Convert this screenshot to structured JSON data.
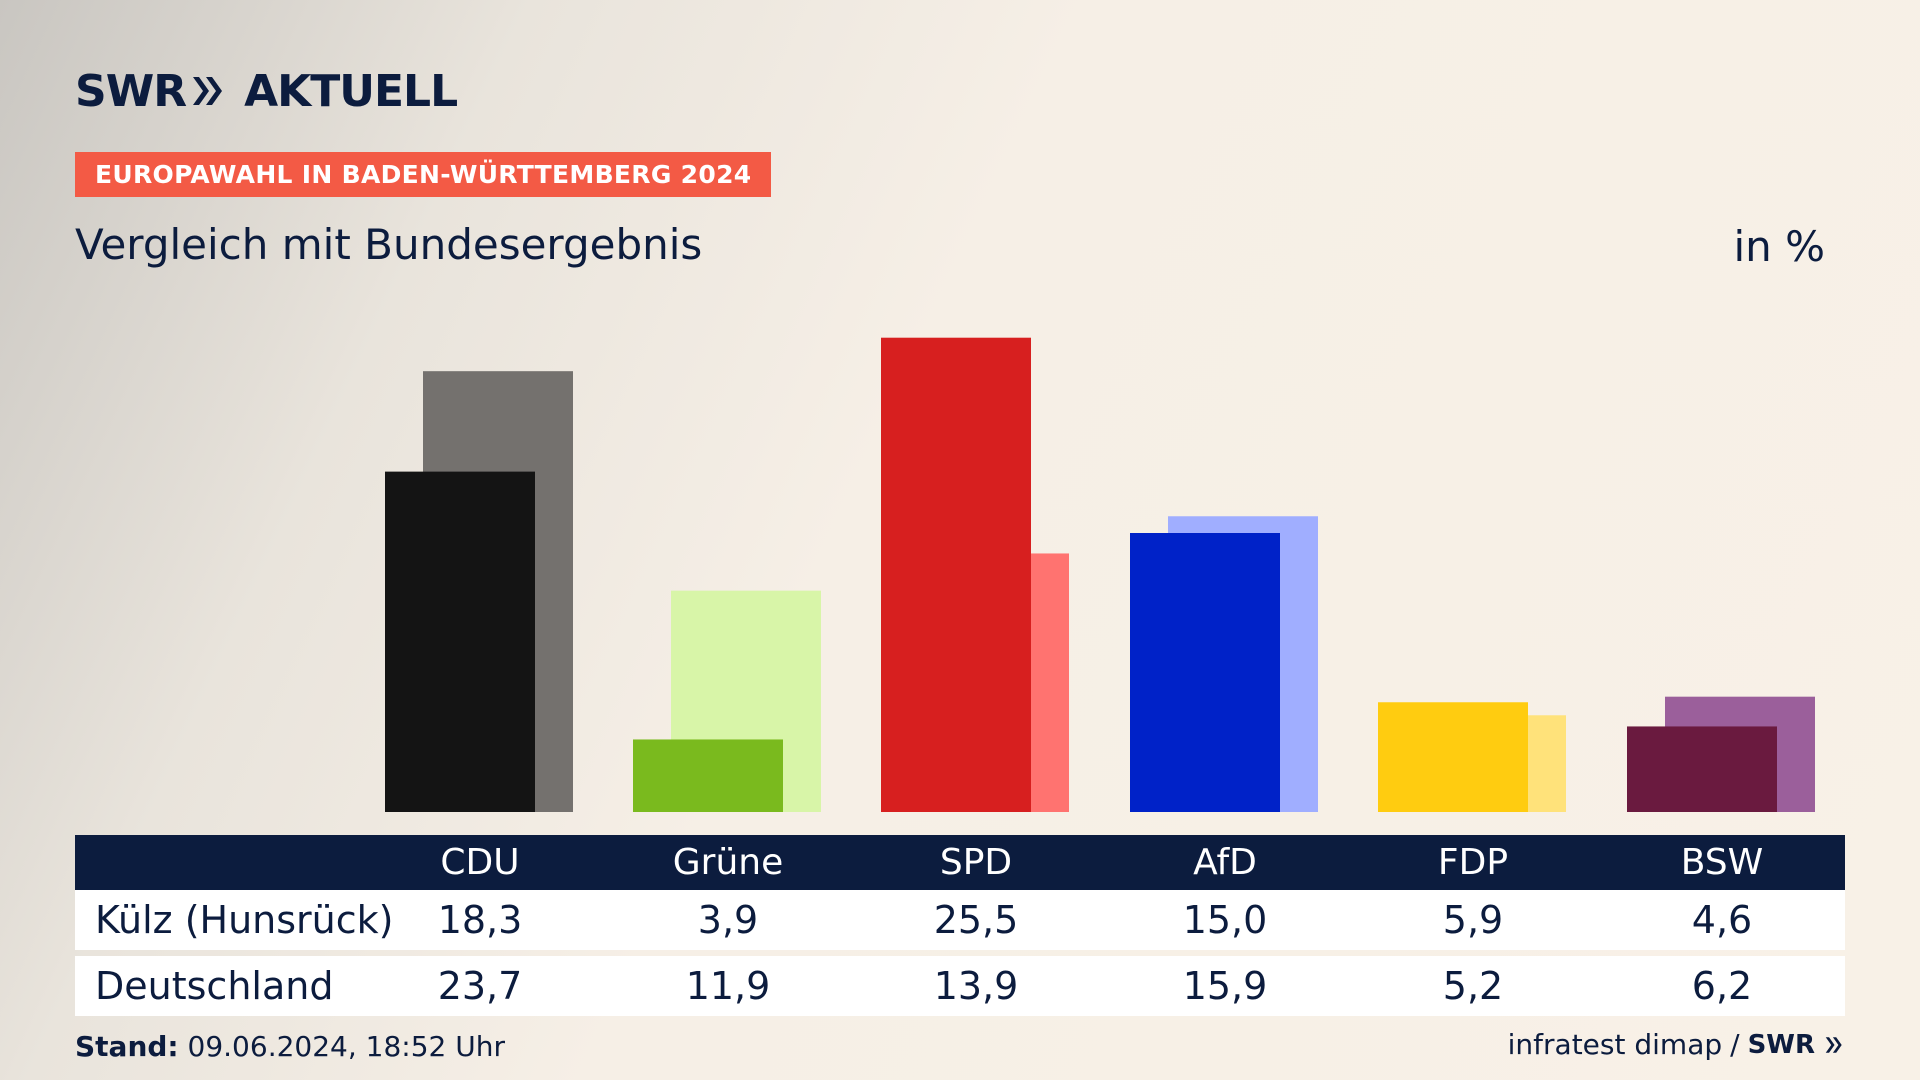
{
  "brand": {
    "swr": "SWR",
    "aktuell": "AKTUELL",
    "swr_small": "SWR"
  },
  "header": {
    "tag": "EUROPAWAHL IN BADEN-WÜRTTEMBERG 2024",
    "subtitle": "Vergleich mit Bundesergebnis",
    "unit": "in %"
  },
  "colors": {
    "navy": "#0c1c3e",
    "tag": "#f35a45",
    "CDU": [
      "#141414",
      "#74716e"
    ],
    "Grüne": [
      "#7aba1e",
      "#d8f5a8"
    ],
    "SPD": [
      "#d71f1f",
      "#ff7370"
    ],
    "AfD": [
      "#0022c8",
      "#a0aeff"
    ],
    "FDP": [
      "#ffcc10",
      "#ffe27a"
    ],
    "BSW": [
      "#6a1a3f",
      "#9b5f9b"
    ]
  },
  "chart_data": {
    "type": "bar",
    "categories": [
      "CDU",
      "Grüne",
      "SPD",
      "AfD",
      "FDP",
      "BSW"
    ],
    "series": [
      {
        "name": "Külz (Hunsrück)",
        "values": [
          18.3,
          3.9,
          25.5,
          15.0,
          5.9,
          4.6
        ]
      },
      {
        "name": "Deutschland",
        "values": [
          23.7,
          11.9,
          13.9,
          15.9,
          5.2,
          6.2
        ]
      }
    ],
    "grid": false
  },
  "table": {
    "columns": [
      "CDU",
      "Grüne",
      "SPD",
      "AfD",
      "FDP",
      "BSW"
    ],
    "rows": [
      {
        "label": "Külz (Hunsrück)",
        "values": [
          "18,3",
          "3,9",
          "25,5",
          "15,0",
          "5,9",
          "4,6"
        ]
      },
      {
        "label": "Deutschland",
        "values": [
          "23,7",
          "11,9",
          "13,9",
          "15,9",
          "5,2",
          "6,2"
        ]
      }
    ]
  },
  "footer": {
    "stand_label": "Stand:",
    "stand_value": "09.06.2024, 18:52 Uhr",
    "source": "infratest dimap",
    "separator": "/"
  }
}
